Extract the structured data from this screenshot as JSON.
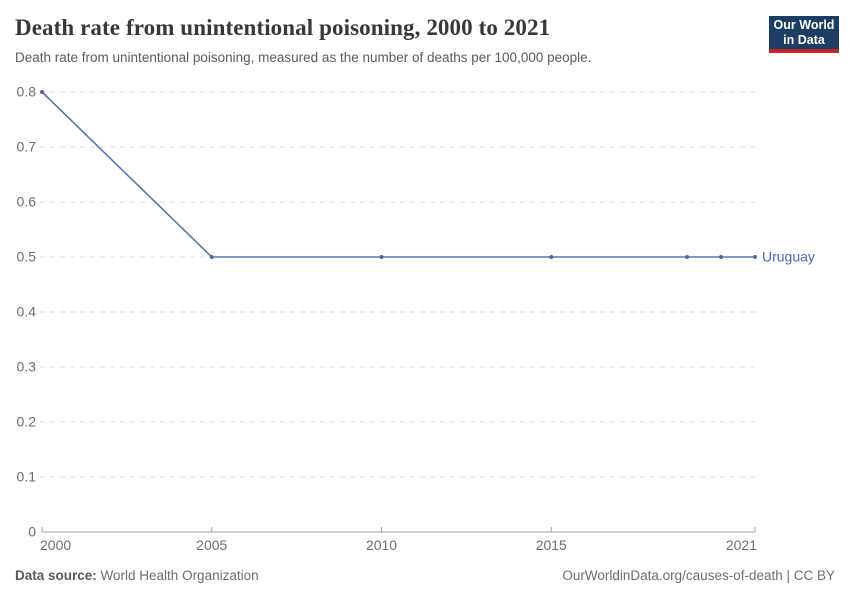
{
  "header": {
    "title": "Death rate from unintentional poisoning, 2000 to 2021",
    "subtitle": "Death rate from unintentional poisoning, measured as the number of deaths per 100,000 people.",
    "logo": {
      "line1": "Our World",
      "line2": "in Data",
      "bg_color": "#1d3d63",
      "accent_color": "#c0262c"
    }
  },
  "chart_data": {
    "type": "line",
    "title": "Death rate from unintentional poisoning, 2000 to 2021",
    "xlabel": "",
    "ylabel": "",
    "x": [
      2000,
      2005,
      2010,
      2015,
      2019,
      2020,
      2021
    ],
    "series": [
      {
        "name": "Uruguay",
        "values": [
          0.8,
          0.5,
          0.5,
          0.5,
          0.5,
          0.5,
          0.5
        ]
      }
    ],
    "entity_label": "Uruguay",
    "xlim": [
      2000,
      2021
    ],
    "ylim": [
      0,
      0.8
    ],
    "yticks": [
      0,
      0.1,
      0.2,
      0.3,
      0.4,
      0.5,
      0.6,
      0.7,
      0.8
    ],
    "ytick_labels": [
      "0",
      "0.1",
      "0.2",
      "0.3",
      "0.4",
      "0.5",
      "0.6",
      "0.7",
      "0.8"
    ],
    "xticks": [
      2000,
      2005,
      2010,
      2015,
      2021
    ],
    "xtick_labels": [
      "2000",
      "2005",
      "2010",
      "2015",
      "2021"
    ],
    "grid": "horizontal-dashed",
    "legend_position": "end-of-line"
  },
  "colors": {
    "line": "#5b76ad",
    "marker": "#54669a",
    "entity_label": "#4a6aaa",
    "gridline": "#dcdcdc",
    "axis": "#a3a3a3",
    "tick_label": "#6e6e6e"
  },
  "footer": {
    "datasource_label": "Data source:",
    "datasource_value": " World Health Organization",
    "right_text": "OurWorldinData.org/causes-of-death | CC BY"
  }
}
